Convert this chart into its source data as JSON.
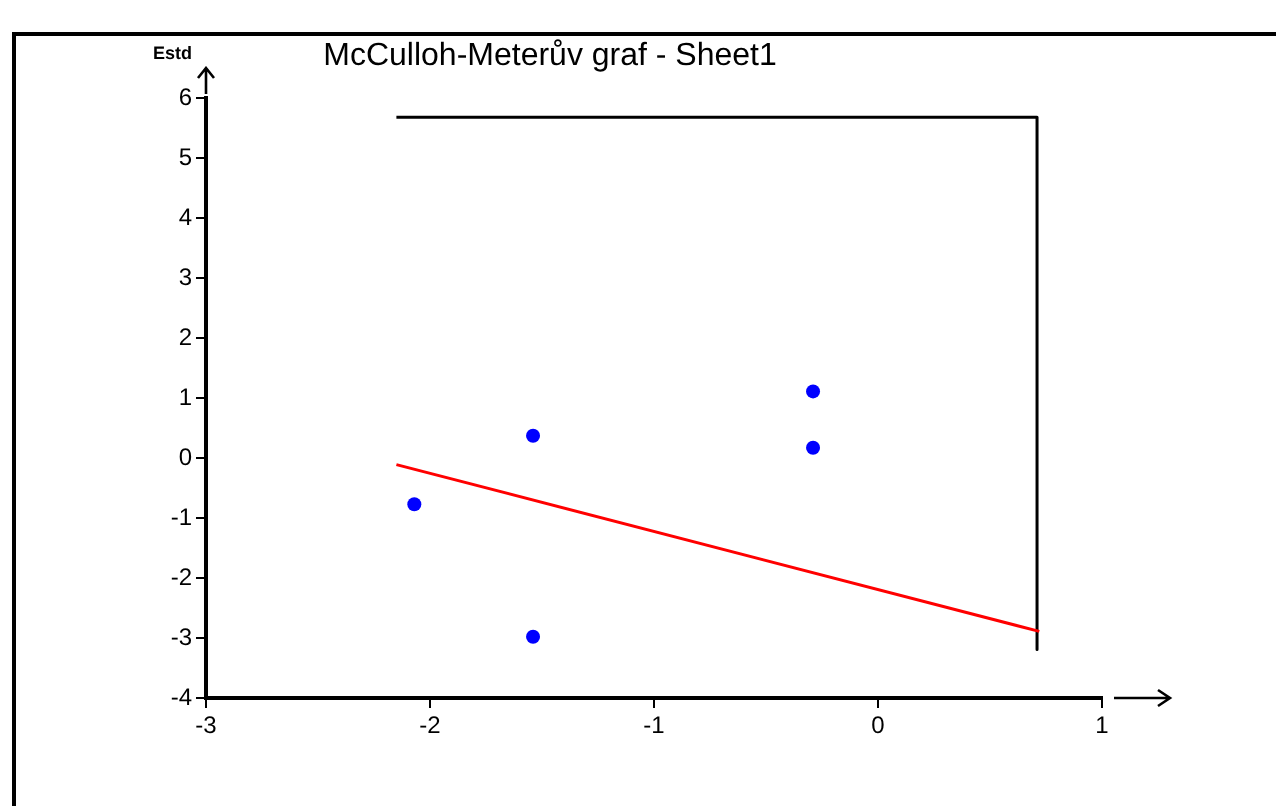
{
  "chart_data": {
    "type": "scatter",
    "title": "McCulloh-Meterův graf - Sheet1",
    "ylabel": "Estd",
    "xlim": [
      -3,
      1
    ],
    "xticks": [
      -3,
      -2,
      -1,
      0,
      1
    ],
    "ylim": [
      -4,
      6
    ],
    "yticks": [
      -4,
      -3,
      -2,
      -1,
      0,
      1,
      2,
      3,
      4,
      5,
      6
    ],
    "grid": false,
    "legend": false,
    "series": [
      {
        "color": "#0000ff",
        "marker": "circle",
        "x": [
          -2.07,
          -1.54,
          -1.54,
          -0.29,
          -0.29
        ],
        "values": [
          -0.77,
          0.37,
          -2.98,
          1.11,
          0.17
        ]
      },
      {
        "type": "line",
        "marker": "none",
        "color": "#ff0000",
        "x": [
          -2.15,
          0.72
        ],
        "values": [
          -0.11,
          -2.89
        ]
      },
      {
        "type": "line",
        "marker": "none",
        "color": "#000000",
        "x": [
          -2.15,
          0.71,
          0.71
        ],
        "values": [
          5.68,
          5.68,
          -3.19
        ]
      }
    ]
  }
}
